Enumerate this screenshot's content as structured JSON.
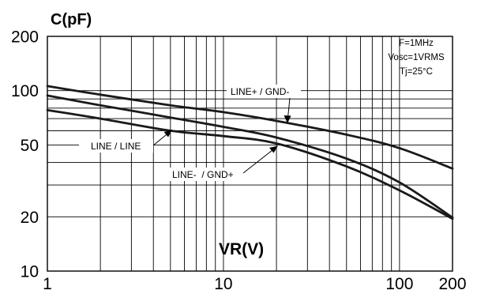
{
  "chart_data": {
    "type": "line",
    "title": "",
    "xlabel": "VR(V)",
    "ylabel": "C(pF)",
    "xscale": "log",
    "yscale": "log",
    "xlim": [
      1,
      200
    ],
    "ylim": [
      10,
      200
    ],
    "xticks": [
      1,
      10,
      100,
      200
    ],
    "xtick_labels": [
      "1",
      "10",
      "100",
      "200"
    ],
    "yticks": [
      10,
      20,
      50,
      100,
      200
    ],
    "ytick_labels": [
      "10",
      "20",
      "50",
      "100",
      "200"
    ],
    "grid": true,
    "legend": "none",
    "conditions": [
      "F=1MHz",
      "Vosc=1VRMS",
      "Tj=25°C"
    ],
    "series": [
      {
        "name": "LINE+ / GND-",
        "x": [
          1,
          2,
          5,
          10,
          20,
          50,
          100,
          200
        ],
        "y": [
          106,
          95,
          83,
          76,
          68,
          57,
          48,
          37
        ]
      },
      {
        "name": "LINE / LINE",
        "x": [
          1,
          2,
          5,
          10,
          20,
          50,
          100,
          200
        ],
        "y": [
          94,
          83,
          71,
          63,
          55,
          42,
          31,
          19.8
        ]
      },
      {
        "name": "LINE-  / GND+",
        "x": [
          1,
          2,
          5,
          10,
          20,
          50,
          100,
          200
        ],
        "y": [
          78,
          70,
          60,
          56,
          51,
          38,
          28,
          19.5
        ]
      }
    ],
    "callouts": [
      {
        "series": 0,
        "text": "LINE+ / GND-",
        "x": 20,
        "y": 68
      },
      {
        "series": 1,
        "text": "LINE / LINE",
        "x": 5,
        "y": 71
      },
      {
        "series": 2,
        "text": "LINE-  / GND+",
        "x": 20,
        "y": 51
      }
    ]
  }
}
